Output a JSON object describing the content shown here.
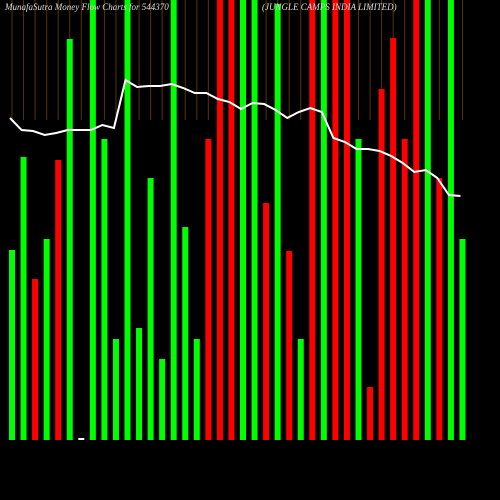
{
  "chart_data": {
    "type": "bar",
    "title": "MunafaSutra  Money Flow  Charts for 544370",
    "subtitle": "(JUNGLE CAMPS INDIA LIMITED)",
    "categories": [
      null,
      null,
      null,
      null,
      null,
      null,
      null,
      null,
      null,
      null,
      null,
      null,
      null,
      null,
      null,
      null,
      null,
      null,
      null,
      null,
      null,
      null,
      null,
      null,
      null,
      null,
      null,
      null,
      null,
      null,
      null,
      null,
      null,
      null,
      null,
      null,
      null,
      null,
      null,
      null
    ],
    "values": [
      190,
      283,
      161,
      201,
      280,
      401,
      2,
      440,
      301,
      101,
      440,
      112,
      262,
      81,
      440,
      213,
      101,
      301,
      440,
      440,
      440,
      440,
      237,
      436,
      189,
      101,
      440,
      440,
      440,
      440,
      301,
      53,
      351,
      402,
      301,
      440,
      440,
      262,
      440,
      201
    ],
    "colors": [
      "#00ff00",
      "#00ff00",
      "#ff0000",
      "#00ff00",
      "#ff0000",
      "#00ff00",
      "#ffffff",
      "#00ff00",
      "#00ff00",
      "#00ff00",
      "#00ff00",
      "#00ff00",
      "#00ff00",
      "#00ff00",
      "#00ff00",
      "#00ff00",
      "#00ff00",
      "#ff0000",
      "#ff0000",
      "#ff0000",
      "#00ff00",
      "#00ff00",
      "#ff0000",
      "#00ff00",
      "#ff0000",
      "#00ff00",
      "#ff0000",
      "#00ff00",
      "#ff0000",
      "#ff0000",
      "#00ff00",
      "#ff0000",
      "#ff0000",
      "#ff0000",
      "#ff0000",
      "#ff0000",
      "#00ff00",
      "#ff0000",
      "#00ff00",
      "#00ff00"
    ],
    "line": {
      "color": "#ffffff",
      "values": [
        322,
        310,
        309,
        305,
        307,
        310,
        310,
        310,
        315,
        312,
        360,
        353,
        354,
        354,
        356,
        352,
        347,
        347,
        341,
        338,
        331,
        337,
        336,
        330,
        322,
        328,
        332,
        328,
        302,
        298,
        291,
        291,
        289,
        284,
        277,
        268,
        270,
        262,
        245,
        244
      ]
    },
    "ylim": [
      0,
      440
    ]
  }
}
